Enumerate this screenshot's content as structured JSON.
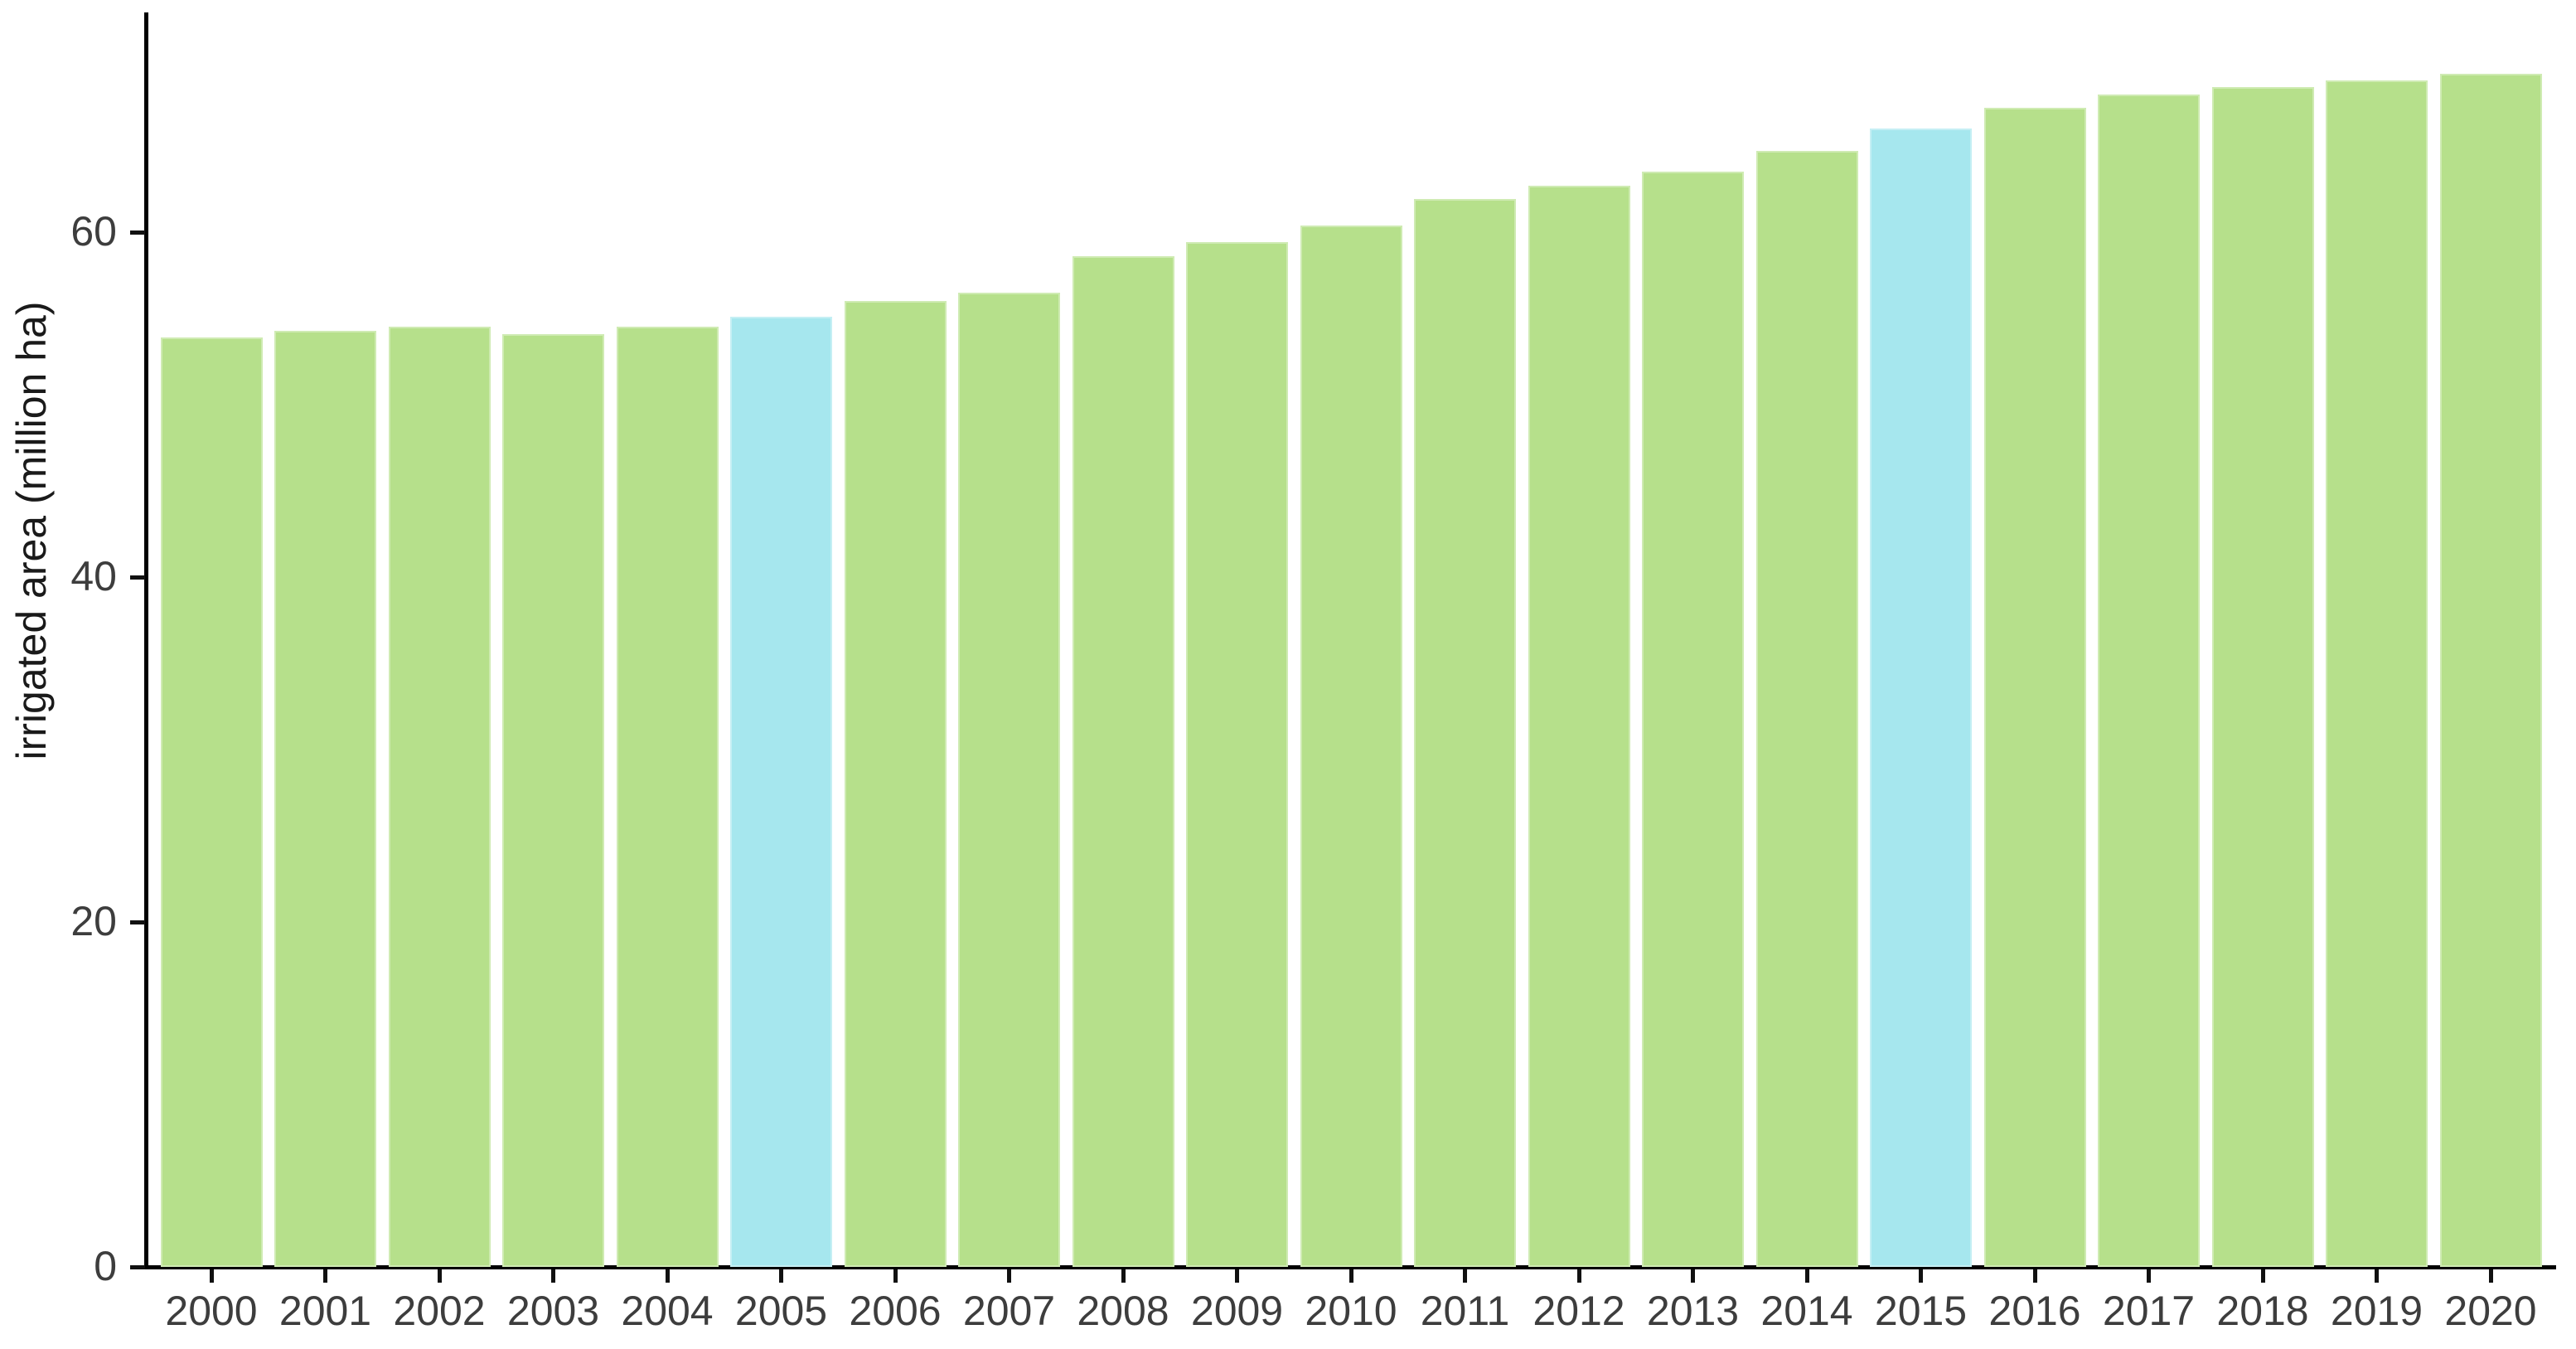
{
  "chart_data": {
    "type": "bar",
    "title": "",
    "xlabel": "",
    "ylabel": "irrigated area (million ha)",
    "categories": [
      "2000",
      "2001",
      "2002",
      "2003",
      "2004",
      "2005",
      "2006",
      "2007",
      "2008",
      "2009",
      "2010",
      "2011",
      "2012",
      "2013",
      "2014",
      "2015",
      "2016",
      "2017",
      "2018",
      "2019",
      "2020"
    ],
    "values": [
      53.9,
      54.3,
      54.5,
      54.1,
      54.5,
      55.1,
      56.0,
      56.5,
      58.6,
      59.4,
      60.4,
      61.9,
      62.7,
      63.5,
      64.7,
      66.0,
      67.2,
      68.0,
      68.4,
      68.8,
      69.2
    ],
    "highlighted_categories": [
      "2005",
      "2015"
    ],
    "yticks": [
      0,
      20,
      40,
      60
    ],
    "ylim": [
      0,
      70
    ],
    "grid": false,
    "legend": null,
    "colors": {
      "bar": "#b6e08b",
      "highlighted_bar": "#a6e7ee",
      "axis": "#000000",
      "tick_label": "#3d3d3d",
      "axis_title": "#1a1a1a",
      "background": "#ffffff"
    }
  }
}
